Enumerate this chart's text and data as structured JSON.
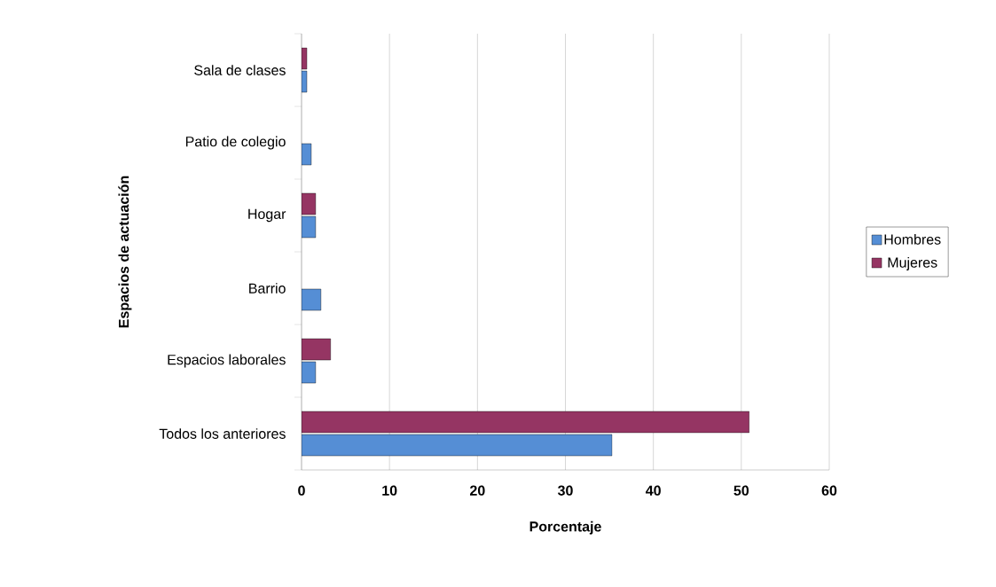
{
  "chart_data": {
    "type": "bar",
    "orientation": "horizontal",
    "xlabel": "Porcentaje",
    "ylabel": "Espacios de actuación",
    "categories": [
      "Sala de clases",
      "Patio de colegio",
      "Hogar",
      "Barrio",
      "Espacios laborales",
      "Todos los anteriores"
    ],
    "series": [
      {
        "name": "Hombres",
        "color": "#558ed5",
        "values": [
          0.6,
          1.1,
          1.6,
          2.2,
          1.6,
          35.3
        ]
      },
      {
        "name": "Mujeres",
        "color": "#953563",
        "values": [
          0.6,
          null,
          1.6,
          null,
          3.3,
          50.9
        ]
      }
    ],
    "xlim": [
      0,
      60
    ],
    "xticks": [
      0,
      10,
      20,
      30,
      40,
      50,
      60
    ],
    "grid": "x",
    "legend": "right"
  }
}
